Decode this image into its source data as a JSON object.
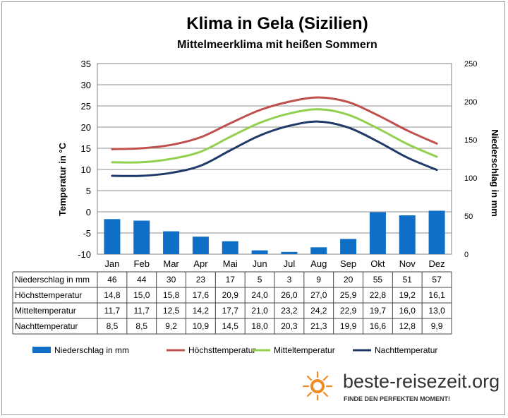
{
  "chart_data": {
    "type": "bar",
    "title": "Klima in Gela (Sizilien)",
    "subtitle": "Mittelmeerklima mit heißen Sommern",
    "categories": [
      "Jan",
      "Feb",
      "Mar",
      "Apr",
      "Mai",
      "Jun",
      "Jul",
      "Aug",
      "Sep",
      "Okt",
      "Nov",
      "Dez"
    ],
    "ylabel": "Temperatur in °C",
    "y2label": "Niederschlag in mm",
    "ylim": [
      -10,
      35
    ],
    "y2lim": [
      0,
      250
    ],
    "yticks": [
      "35",
      "30",
      "25",
      "20",
      "15",
      "10",
      "5",
      "0",
      "-5",
      "-10"
    ],
    "y2ticks": [
      "250",
      "200",
      "150",
      "100",
      "50",
      "0"
    ],
    "grid": true,
    "legend_position": "bottom",
    "series": [
      {
        "name": "Niederschlag in mm",
        "type": "bar",
        "axis": "right",
        "color": "#0f6fc6",
        "values": [
          46,
          44,
          30,
          23,
          17,
          5,
          3,
          9,
          20,
          55,
          51,
          57
        ],
        "labels": [
          "46",
          "44",
          "30",
          "23",
          "17",
          "5",
          "3",
          "9",
          "20",
          "55",
          "51",
          "57"
        ]
      },
      {
        "name": "Höchsttemperatur",
        "type": "line",
        "axis": "left",
        "color": "#c0504d",
        "values": [
          14.8,
          15.0,
          15.8,
          17.6,
          20.9,
          24.0,
          26.0,
          27.0,
          25.9,
          22.8,
          19.2,
          16.1
        ],
        "labels": [
          "14,8",
          "15,0",
          "15,8",
          "17,6",
          "20,9",
          "24,0",
          "26,0",
          "27,0",
          "25,9",
          "22,8",
          "19,2",
          "16,1"
        ]
      },
      {
        "name": "Mitteltemperatur",
        "type": "line",
        "axis": "left",
        "color": "#92d050",
        "values": [
          11.7,
          11.7,
          12.5,
          14.2,
          17.7,
          21.0,
          23.2,
          24.2,
          22.9,
          19.7,
          16.0,
          13.0
        ],
        "labels": [
          "11,7",
          "11,7",
          "12,5",
          "14,2",
          "17,7",
          "21,0",
          "23,2",
          "24,2",
          "22,9",
          "19,7",
          "16,0",
          "13,0"
        ]
      },
      {
        "name": "Nachttemperatur",
        "type": "line",
        "axis": "left",
        "color": "#1f3a68",
        "values": [
          8.5,
          8.5,
          9.2,
          10.9,
          14.5,
          18.0,
          20.3,
          21.3,
          19.9,
          16.6,
          12.8,
          9.9
        ],
        "labels": [
          "8,5",
          "8,5",
          "9,2",
          "10,9",
          "14,5",
          "18,0",
          "20,3",
          "21,3",
          "19,9",
          "16,6",
          "12,8",
          "9,9"
        ]
      }
    ]
  },
  "branding": {
    "name": "beste-reisezeit.org",
    "tagline": "FINDE DEN PERFEKTEN MOMENT!",
    "accent_color": "#f08a24"
  }
}
